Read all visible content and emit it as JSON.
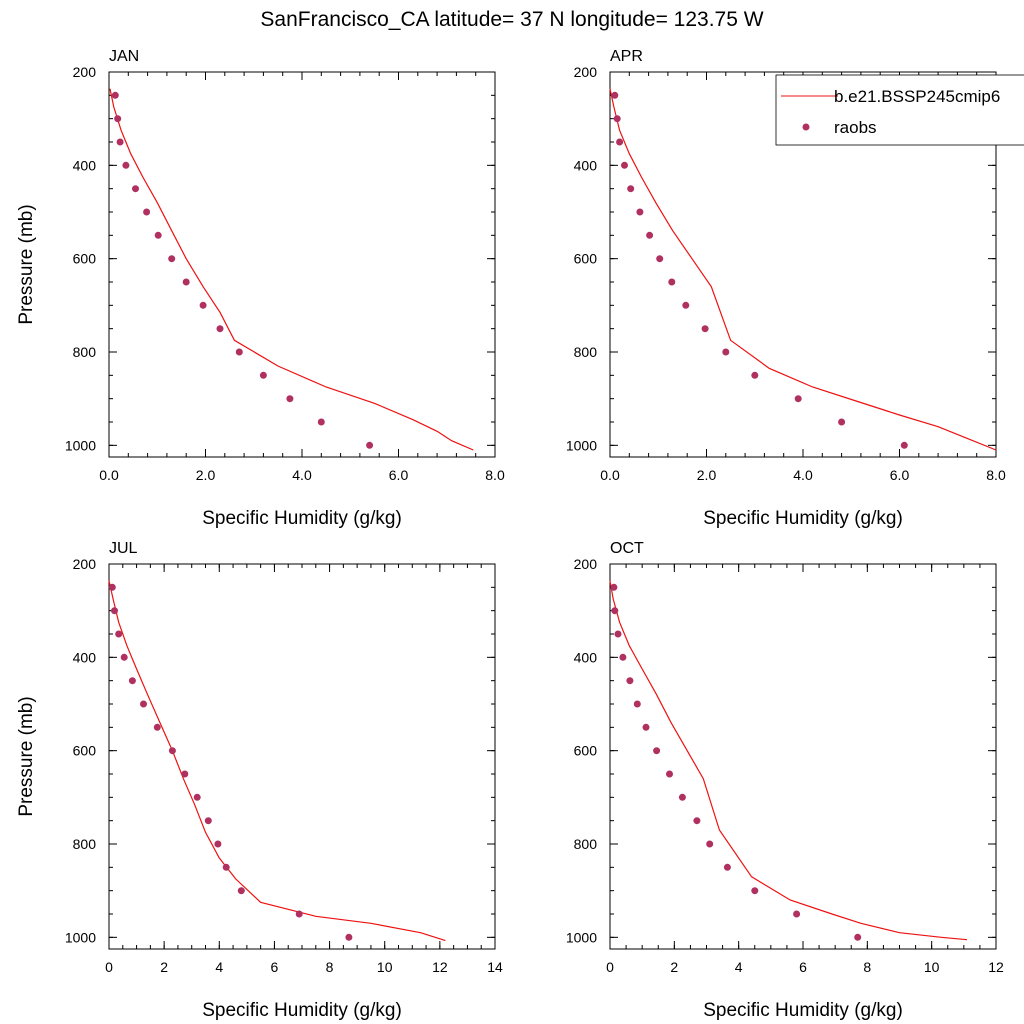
{
  "title": "SanFrancisco_CA  latitude= 37 N longitude= 123.75 W",
  "colors": {
    "model": "#ee1111",
    "obs": "#b03060",
    "axis": "#000000"
  },
  "legend": {
    "model_label": "b.e21.BSSP245cmip6",
    "obs_label": "raobs",
    "placement": "top-right"
  },
  "chart_data": [
    {
      "type": "line+scatter",
      "panel_title": "JAN",
      "xlabel": "Specific Humidity (g/kg)",
      "ylabel": "Pressure (mb)",
      "xlim": [
        0,
        8
      ],
      "ylim": [
        200,
        1025
      ],
      "y_inverted": true,
      "xticks": [
        0,
        2,
        4,
        6,
        8
      ],
      "xtick_labels": [
        "0.0",
        "2.0",
        "4.0",
        "6.0",
        "8.0"
      ],
      "x_minor_step": 0.4,
      "yticks": [
        200,
        400,
        600,
        800,
        1000
      ],
      "ytick_labels": [
        "200",
        "400",
        "600",
        "800",
        "1000"
      ],
      "y_minor_step": 50,
      "model": {
        "x": [
          0.02,
          0.1,
          0.25,
          0.45,
          0.7,
          1.0,
          1.3,
          1.6,
          1.95,
          2.3,
          2.6,
          3.5,
          4.5,
          5.5,
          6.3,
          6.8,
          7.1,
          7.55
        ],
        "y": [
          236,
          275,
          325,
          375,
          425,
          480,
          540,
          600,
          660,
          715,
          775,
          830,
          875,
          910,
          945,
          970,
          990,
          1010
        ]
      },
      "obs": {
        "x": [
          0.13,
          0.18,
          0.23,
          0.35,
          0.55,
          0.78,
          1.02,
          1.3,
          1.6,
          1.95,
          2.3,
          2.7,
          3.2,
          3.75,
          4.4,
          5.4
        ],
        "y": [
          250,
          300,
          350,
          400,
          450,
          500,
          550,
          600,
          650,
          700,
          750,
          800,
          850,
          900,
          950,
          1000
        ]
      }
    },
    {
      "type": "line+scatter",
      "panel_title": "APR",
      "xlabel": "Specific Humidity (g/kg)",
      "ylabel": "",
      "xlim": [
        0,
        8
      ],
      "ylim": [
        200,
        1025
      ],
      "y_inverted": true,
      "xticks": [
        0,
        2,
        4,
        6,
        8
      ],
      "xtick_labels": [
        "0.0",
        "2.0",
        "4.0",
        "6.0",
        "8.0"
      ],
      "x_minor_step": 0.4,
      "yticks": [
        200,
        400,
        600,
        800,
        1000
      ],
      "ytick_labels": [
        "200",
        "400",
        "600",
        "800",
        "1000"
      ],
      "y_minor_step": 50,
      "model": {
        "x": [
          0.0,
          0.08,
          0.2,
          0.4,
          0.65,
          0.95,
          1.3,
          1.7,
          2.1,
          2.5,
          3.3,
          4.2,
          5.1,
          6.0,
          6.8,
          7.4,
          8.0
        ],
        "y": [
          236,
          275,
          325,
          375,
          425,
          480,
          540,
          600,
          660,
          775,
          835,
          875,
          905,
          935,
          960,
          985,
          1010
        ]
      },
      "obs": {
        "x": [
          0.1,
          0.15,
          0.2,
          0.3,
          0.43,
          0.62,
          0.82,
          1.03,
          1.28,
          1.57,
          1.97,
          2.4,
          3.0,
          3.9,
          4.8,
          6.1
        ],
        "y": [
          250,
          300,
          350,
          400,
          450,
          500,
          550,
          600,
          650,
          700,
          750,
          800,
          850,
          900,
          950,
          1000
        ]
      }
    },
    {
      "type": "line+scatter",
      "panel_title": "JUL",
      "xlabel": "Specific Humidity (g/kg)",
      "ylabel": "Pressure (mb)",
      "xlim": [
        0,
        14
      ],
      "ylim": [
        200,
        1025
      ],
      "y_inverted": true,
      "xticks": [
        0,
        2,
        4,
        6,
        8,
        10,
        12,
        14
      ],
      "xtick_labels": [
        "0",
        "2",
        "4",
        "6",
        "8",
        "10",
        "12",
        "14"
      ],
      "x_minor_step": 0.5,
      "yticks": [
        200,
        400,
        600,
        800,
        1000
      ],
      "ytick_labels": [
        "200",
        "400",
        "600",
        "800",
        "1000"
      ],
      "y_minor_step": 50,
      "model": {
        "x": [
          0.0,
          0.15,
          0.35,
          0.65,
          1.0,
          1.4,
          1.85,
          2.3,
          2.7,
          3.1,
          3.5,
          4.0,
          4.6,
          5.5,
          7.5,
          9.5,
          11.3,
          12.2
        ],
        "y": [
          236,
          275,
          325,
          375,
          425,
          480,
          540,
          600,
          660,
          715,
          775,
          830,
          875,
          925,
          955,
          970,
          990,
          1007
        ]
      },
      "obs": {
        "x": [
          0.12,
          0.2,
          0.35,
          0.55,
          0.85,
          1.25,
          1.75,
          2.3,
          2.75,
          3.2,
          3.6,
          3.95,
          4.25,
          4.8,
          6.9,
          8.7
        ],
        "y": [
          250,
          300,
          350,
          400,
          450,
          500,
          550,
          600,
          650,
          700,
          750,
          800,
          850,
          900,
          950,
          1000
        ]
      }
    },
    {
      "type": "line+scatter",
      "panel_title": "OCT",
      "xlabel": "Specific Humidity (g/kg)",
      "ylabel": "",
      "xlim": [
        0,
        12
      ],
      "ylim": [
        200,
        1025
      ],
      "y_inverted": true,
      "xticks": [
        0,
        2,
        4,
        6,
        8,
        10,
        12
      ],
      "xtick_labels": [
        "0",
        "2",
        "4",
        "6",
        "8",
        "10",
        "12"
      ],
      "x_minor_step": 0.5,
      "yticks": [
        200,
        400,
        600,
        800,
        1000
      ],
      "ytick_labels": [
        "200",
        "400",
        "600",
        "800",
        "1000"
      ],
      "y_minor_step": 50,
      "model": {
        "x": [
          0.0,
          0.1,
          0.3,
          0.6,
          1.0,
          1.45,
          1.9,
          2.4,
          2.9,
          3.4,
          4.4,
          5.6,
          6.9,
          7.8,
          9.0,
          10.3,
          11.1
        ],
        "y": [
          236,
          275,
          325,
          375,
          425,
          480,
          540,
          600,
          660,
          770,
          870,
          920,
          950,
          970,
          990,
          1000,
          1005
        ]
      },
      "obs": {
        "x": [
          0.12,
          0.15,
          0.25,
          0.4,
          0.62,
          0.85,
          1.12,
          1.45,
          1.85,
          2.25,
          2.7,
          3.1,
          3.65,
          4.5,
          5.8,
          7.7
        ],
        "y": [
          250,
          300,
          350,
          400,
          450,
          500,
          550,
          600,
          650,
          700,
          750,
          800,
          850,
          900,
          950,
          1000
        ]
      }
    }
  ]
}
